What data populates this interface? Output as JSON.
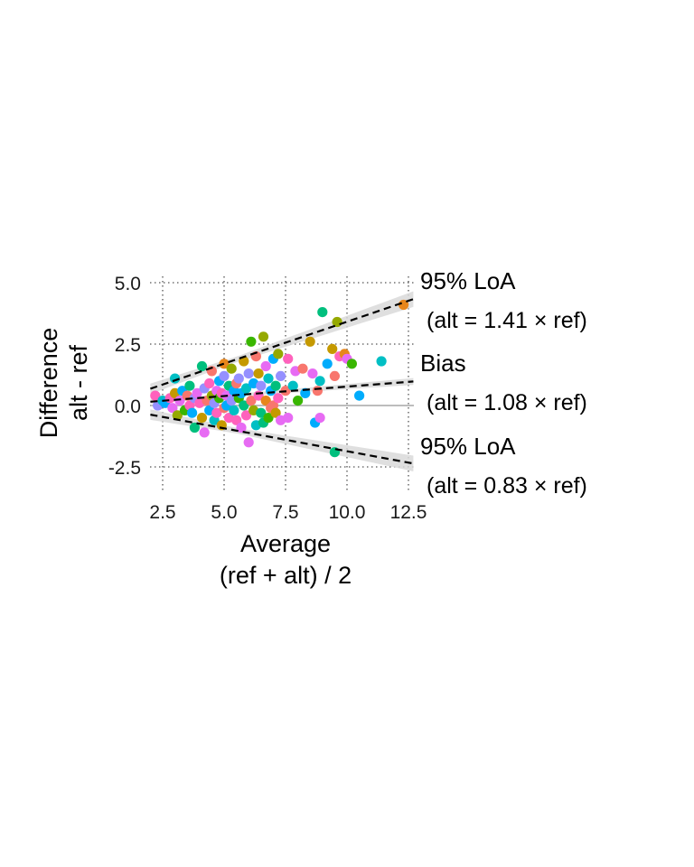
{
  "chart_data": {
    "type": "scatter",
    "xlabel_line1": "Average",
    "xlabel_line2": "(ref + alt) / 2",
    "ylabel_line1": "Difference",
    "ylabel_line2": "alt - ref",
    "x_ticks": [
      "2.5",
      "5.0",
      "7.5",
      "10.0",
      "12.5"
    ],
    "y_ticks": [
      "-2.5",
      "0.0",
      "2.5",
      "5.0"
    ],
    "x_tick_values": [
      2.5,
      5.0,
      7.5,
      10.0,
      12.5
    ],
    "y_tick_values": [
      -2.5,
      0.0,
      2.5,
      5.0
    ],
    "xlim": [
      2.0,
      12.5
    ],
    "ylim": [
      -3.4,
      5.3
    ],
    "grid": true,
    "annotations": [
      {
        "label": "95% LoA",
        "equation": "(alt = 1.41 × ref)",
        "slope": 0.341,
        "band_width": 0.32
      },
      {
        "label": "Bias",
        "equation": "(alt = 1.08 × ref)",
        "slope": 0.077,
        "band_width": 0.14
      },
      {
        "label": "95% LoA",
        "equation": "(alt = 0.83 × ref)",
        "slope": -0.186,
        "band_width": 0.32
      }
    ],
    "colors": {
      "zero_line": "#bdbdbd",
      "band": "#d9d9d9",
      "line": "#000000",
      "grid": "#555555"
    },
    "point_colors": [
      "#F8766D",
      "#E7861B",
      "#C59900",
      "#95A900",
      "#39B600",
      "#00BF7D",
      "#00BFC4",
      "#00ACFC",
      "#9590FF",
      "#E76BF3",
      "#FF62BC"
    ],
    "points": [
      [
        2.2,
        0.4,
        10
      ],
      [
        2.3,
        0.0,
        8
      ],
      [
        2.5,
        0.2,
        6
      ],
      [
        2.6,
        0.1,
        7
      ],
      [
        2.8,
        0.3,
        10
      ],
      [
        2.9,
        -0.1,
        9
      ],
      [
        3.0,
        0.5,
        2
      ],
      [
        3.0,
        1.1,
        6
      ],
      [
        3.1,
        -0.4,
        3
      ],
      [
        3.2,
        0.2,
        9
      ],
      [
        3.3,
        0.6,
        7
      ],
      [
        3.4,
        -0.2,
        4
      ],
      [
        3.5,
        0.4,
        0
      ],
      [
        3.6,
        0.0,
        10
      ],
      [
        3.6,
        0.8,
        5
      ],
      [
        3.7,
        -0.3,
        7
      ],
      [
        3.8,
        0.3,
        8
      ],
      [
        3.8,
        -0.9,
        5
      ],
      [
        3.9,
        0.5,
        9
      ],
      [
        4.0,
        0.1,
        10
      ],
      [
        4.1,
        -0.5,
        2
      ],
      [
        4.1,
        1.6,
        5
      ],
      [
        4.2,
        0.7,
        8
      ],
      [
        4.2,
        -1.1,
        9
      ],
      [
        4.3,
        0.2,
        0
      ],
      [
        4.4,
        0.9,
        10
      ],
      [
        4.4,
        -0.2,
        7
      ],
      [
        4.5,
        0.4,
        3
      ],
      [
        4.5,
        1.4,
        0
      ],
      [
        4.6,
        -0.6,
        6
      ],
      [
        4.6,
        0.1,
        8
      ],
      [
        4.7,
        0.6,
        9
      ],
      [
        4.7,
        -0.3,
        10
      ],
      [
        4.8,
        1.0,
        7
      ],
      [
        4.8,
        0.3,
        4
      ],
      [
        4.9,
        -0.8,
        2
      ],
      [
        4.9,
        0.5,
        10
      ],
      [
        5.0,
        1.2,
        8
      ],
      [
        5.0,
        -0.1,
        0
      ],
      [
        5.0,
        1.7,
        1
      ],
      [
        5.1,
        0.4,
        9
      ],
      [
        5.1,
        0.0,
        7
      ],
      [
        5.2,
        0.8,
        5
      ],
      [
        5.2,
        -0.5,
        10
      ],
      [
        5.3,
        0.2,
        8
      ],
      [
        5.3,
        1.5,
        3
      ],
      [
        5.4,
        -0.2,
        6
      ],
      [
        5.4,
        0.6,
        7
      ],
      [
        5.5,
        0.9,
        0
      ],
      [
        5.5,
        -0.6,
        10
      ],
      [
        5.6,
        0.3,
        4
      ],
      [
        5.6,
        1.1,
        8
      ],
      [
        5.7,
        -0.9,
        9
      ],
      [
        5.7,
        0.5,
        7
      ],
      [
        5.8,
        1.8,
        2
      ],
      [
        5.8,
        0.0,
        5
      ],
      [
        5.9,
        -0.4,
        10
      ],
      [
        5.9,
        0.7,
        6
      ],
      [
        6.0,
        -1.5,
        9
      ],
      [
        6.0,
        1.3,
        8
      ],
      [
        6.1,
        0.2,
        0
      ],
      [
        6.1,
        2.6,
        4
      ],
      [
        6.2,
        -0.2,
        3
      ],
      [
        6.2,
        0.9,
        7
      ],
      [
        6.3,
        2.0,
        0
      ],
      [
        6.3,
        -0.8,
        6
      ],
      [
        6.4,
        0.4,
        10
      ],
      [
        6.4,
        1.3,
        2
      ],
      [
        6.5,
        -0.3,
        5
      ],
      [
        6.5,
        0.8,
        8
      ],
      [
        6.6,
        2.8,
        3
      ],
      [
        6.6,
        -0.7,
        5
      ],
      [
        6.7,
        1.6,
        9
      ],
      [
        6.7,
        0.2,
        1
      ],
      [
        6.8,
        -0.5,
        4
      ],
      [
        6.8,
        1.1,
        6
      ],
      [
        6.9,
        0.6,
        7
      ],
      [
        6.9,
        -0.1,
        0
      ],
      [
        7.0,
        0.0,
        0
      ],
      [
        7.0,
        1.9,
        7
      ],
      [
        7.1,
        -0.3,
        2
      ],
      [
        7.1,
        0.8,
        5
      ],
      [
        7.2,
        0.3,
        10
      ],
      [
        7.2,
        2.1,
        3
      ],
      [
        7.3,
        -0.6,
        9
      ],
      [
        7.3,
        1.2,
        8
      ],
      [
        7.5,
        0.6,
        0
      ],
      [
        7.6,
        -0.5,
        9
      ],
      [
        7.6,
        1.9,
        10
      ],
      [
        7.8,
        0.8,
        6
      ],
      [
        7.9,
        1.4,
        9
      ],
      [
        8.0,
        0.2,
        4
      ],
      [
        8.2,
        1.5,
        0
      ],
      [
        8.3,
        0.5,
        7
      ],
      [
        8.5,
        2.6,
        2
      ],
      [
        8.6,
        1.3,
        9
      ],
      [
        8.7,
        -0.7,
        7
      ],
      [
        8.8,
        0.6,
        0
      ],
      [
        8.9,
        1.0,
        6
      ],
      [
        8.9,
        -0.5,
        9
      ],
      [
        9.0,
        3.8,
        5
      ],
      [
        9.2,
        1.7,
        7
      ],
      [
        9.4,
        2.3,
        2
      ],
      [
        9.5,
        1.2,
        0
      ],
      [
        9.5,
        -1.9,
        5
      ],
      [
        9.6,
        3.4,
        3
      ],
      [
        9.7,
        2.0,
        10
      ],
      [
        9.9,
        2.1,
        1
      ],
      [
        10.0,
        1.9,
        9
      ],
      [
        10.2,
        1.7,
        4
      ],
      [
        10.5,
        0.4,
        7
      ],
      [
        11.4,
        1.8,
        6
      ],
      [
        12.3,
        4.1,
        1
      ]
    ]
  }
}
